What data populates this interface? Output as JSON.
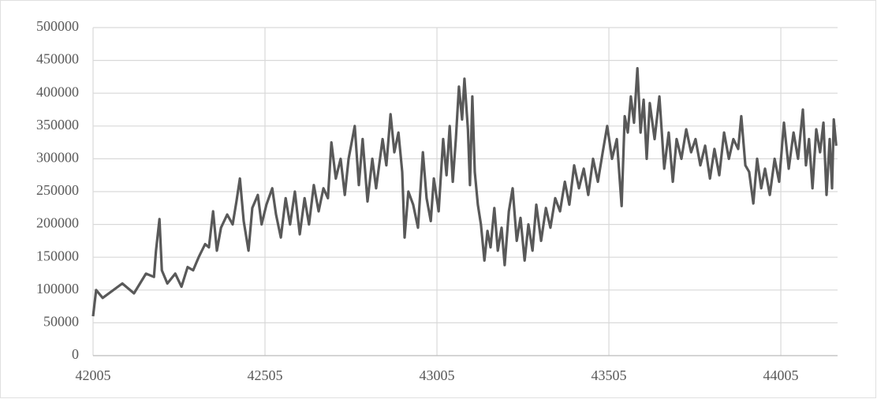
{
  "chart_data": {
    "type": "line",
    "x": [
      42005,
      42014,
      42033,
      42090,
      42124,
      42159,
      42182,
      42188,
      42198,
      42205,
      42221,
      42244,
      42262,
      42280,
      42296,
      42312,
      42331,
      42342,
      42354,
      42365,
      42377,
      42395,
      42411,
      42422,
      42432,
      42443,
      42457,
      42468,
      42484,
      42495,
      42509,
      42526,
      42537,
      42551,
      42565,
      42578,
      42592,
      42606,
      42620,
      42633,
      42647,
      42661,
      42675,
      42688,
      42698,
      42711,
      42725,
      42737,
      42748,
      42766,
      42778,
      42789,
      42803,
      42817,
      42828,
      42847,
      42858,
      42870,
      42881,
      42893,
      42904,
      42911,
      42922,
      42936,
      42950,
      42964,
      42975,
      42987,
      42996,
      43010,
      43023,
      43033,
      43042,
      43051,
      43060,
      43069,
      43078,
      43085,
      43095,
      43101,
      43108,
      43115,
      43124,
      43133,
      43143,
      43152,
      43161,
      43172,
      43182,
      43193,
      43202,
      43214,
      43225,
      43237,
      43248,
      43260,
      43271,
      43283,
      43294,
      43308,
      43322,
      43335,
      43349,
      43363,
      43377,
      43390,
      43404,
      43418,
      43432,
      43445,
      43459,
      43473,
      43487,
      43500,
      43514,
      43528,
      43542,
      43551,
      43560,
      43569,
      43578,
      43588,
      43597,
      43606,
      43615,
      43624,
      43638,
      43652,
      43666,
      43679,
      43691,
      43702,
      43716,
      43730,
      43744,
      43757,
      43771,
      43785,
      43799,
      43812,
      43826,
      43840,
      43854,
      43867,
      43881,
      43890,
      43902,
      43913,
      43925,
      43936,
      43948,
      43959,
      43973,
      43987,
      44000,
      44014,
      44028,
      44042,
      44055,
      44069,
      44078,
      44087,
      44097,
      44108,
      44119,
      44129,
      44138,
      44147,
      44154,
      44159,
      44166
    ],
    "values": [
      60000,
      100000,
      88000,
      110000,
      95000,
      125000,
      120000,
      160000,
      208000,
      130000,
      110000,
      125000,
      105000,
      135000,
      130000,
      150000,
      170000,
      165000,
      220000,
      160000,
      195000,
      215000,
      200000,
      235000,
      270000,
      205000,
      160000,
      225000,
      245000,
      200000,
      230000,
      255000,
      215000,
      180000,
      240000,
      200000,
      250000,
      185000,
      240000,
      200000,
      260000,
      220000,
      255000,
      240000,
      325000,
      270000,
      300000,
      245000,
      300000,
      350000,
      260000,
      330000,
      235000,
      300000,
      255000,
      330000,
      290000,
      368000,
      310000,
      340000,
      280000,
      180000,
      250000,
      230000,
      195000,
      310000,
      240000,
      205000,
      270000,
      220000,
      330000,
      275000,
      350000,
      265000,
      330000,
      410000,
      360000,
      422000,
      345000,
      260000,
      395000,
      280000,
      230000,
      200000,
      145000,
      190000,
      165000,
      225000,
      160000,
      195000,
      138000,
      220000,
      255000,
      175000,
      210000,
      145000,
      200000,
      160000,
      230000,
      175000,
      225000,
      195000,
      240000,
      220000,
      265000,
      230000,
      290000,
      255000,
      285000,
      245000,
      300000,
      265000,
      310000,
      350000,
      300000,
      330000,
      228000,
      365000,
      340000,
      395000,
      355000,
      438000,
      340000,
      390000,
      300000,
      385000,
      330000,
      395000,
      285000,
      340000,
      265000,
      330000,
      300000,
      345000,
      310000,
      330000,
      290000,
      320000,
      270000,
      315000,
      275000,
      340000,
      300000,
      330000,
      315000,
      365000,
      290000,
      280000,
      232000,
      300000,
      255000,
      285000,
      245000,
      300000,
      265000,
      355000,
      285000,
      340000,
      300000,
      375000,
      290000,
      330000,
      255000,
      345000,
      310000,
      355000,
      245000,
      330000,
      255000,
      360000,
      320000
    ],
    "color": "#595959",
    "xlim": [
      42005,
      44170
    ],
    "xticks": [
      42005,
      42505,
      43005,
      43505,
      44005
    ],
    "ylim": [
      0,
      500000
    ],
    "yticks": [
      0,
      50000,
      100000,
      150000,
      200000,
      250000,
      300000,
      350000,
      400000,
      450000,
      500000
    ],
    "grid": true
  }
}
